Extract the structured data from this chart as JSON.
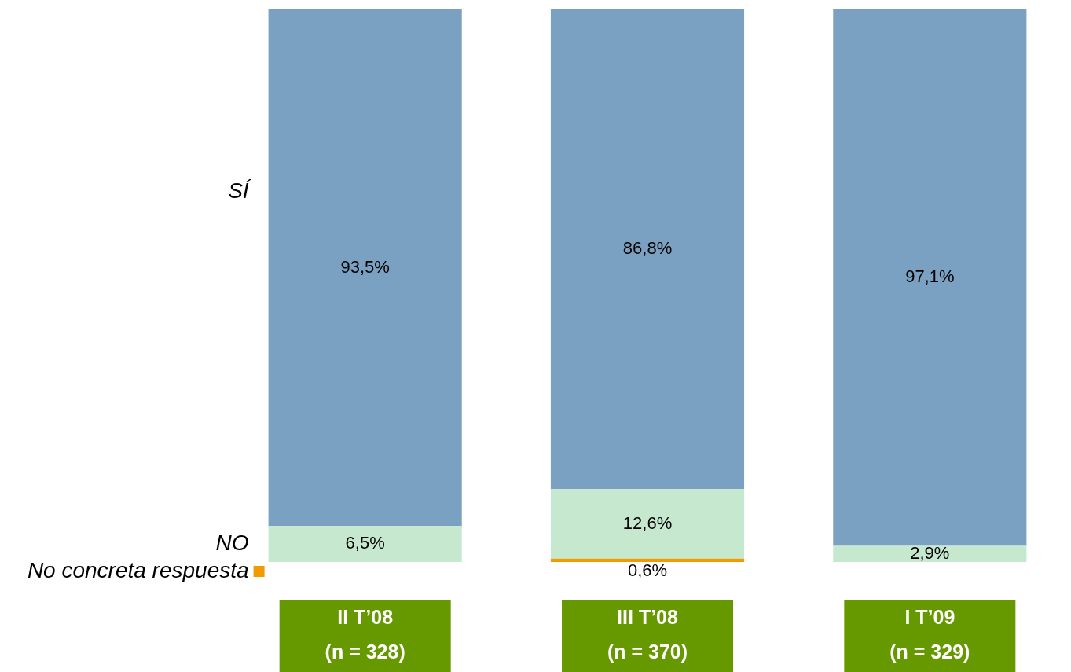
{
  "chart_data": {
    "type": "bar",
    "stacked": true,
    "legend": "left",
    "ylim": [
      0,
      100
    ],
    "categories": [
      "II T’08\n(n = 328)",
      "III T’08\n(n = 370)",
      "I T’09\n(n = 329)"
    ],
    "series": [
      {
        "name": "No concreta respuesta",
        "color": "#f29b00",
        "values": [
          null,
          0.6,
          null
        ],
        "value_labels": [
          null,
          "0,6%",
          null
        ]
      },
      {
        "name": "NO",
        "color": "#c5e8cf",
        "values": [
          6.5,
          12.6,
          2.9
        ],
        "value_labels": [
          "6,5%",
          "12,6%",
          "2,9%"
        ]
      },
      {
        "name": "SÍ",
        "color": "#7aa1c2",
        "values": [
          93.5,
          86.8,
          97.1
        ],
        "value_labels": [
          "93,5%",
          "86,8%",
          "97,1%"
        ]
      }
    ]
  }
}
